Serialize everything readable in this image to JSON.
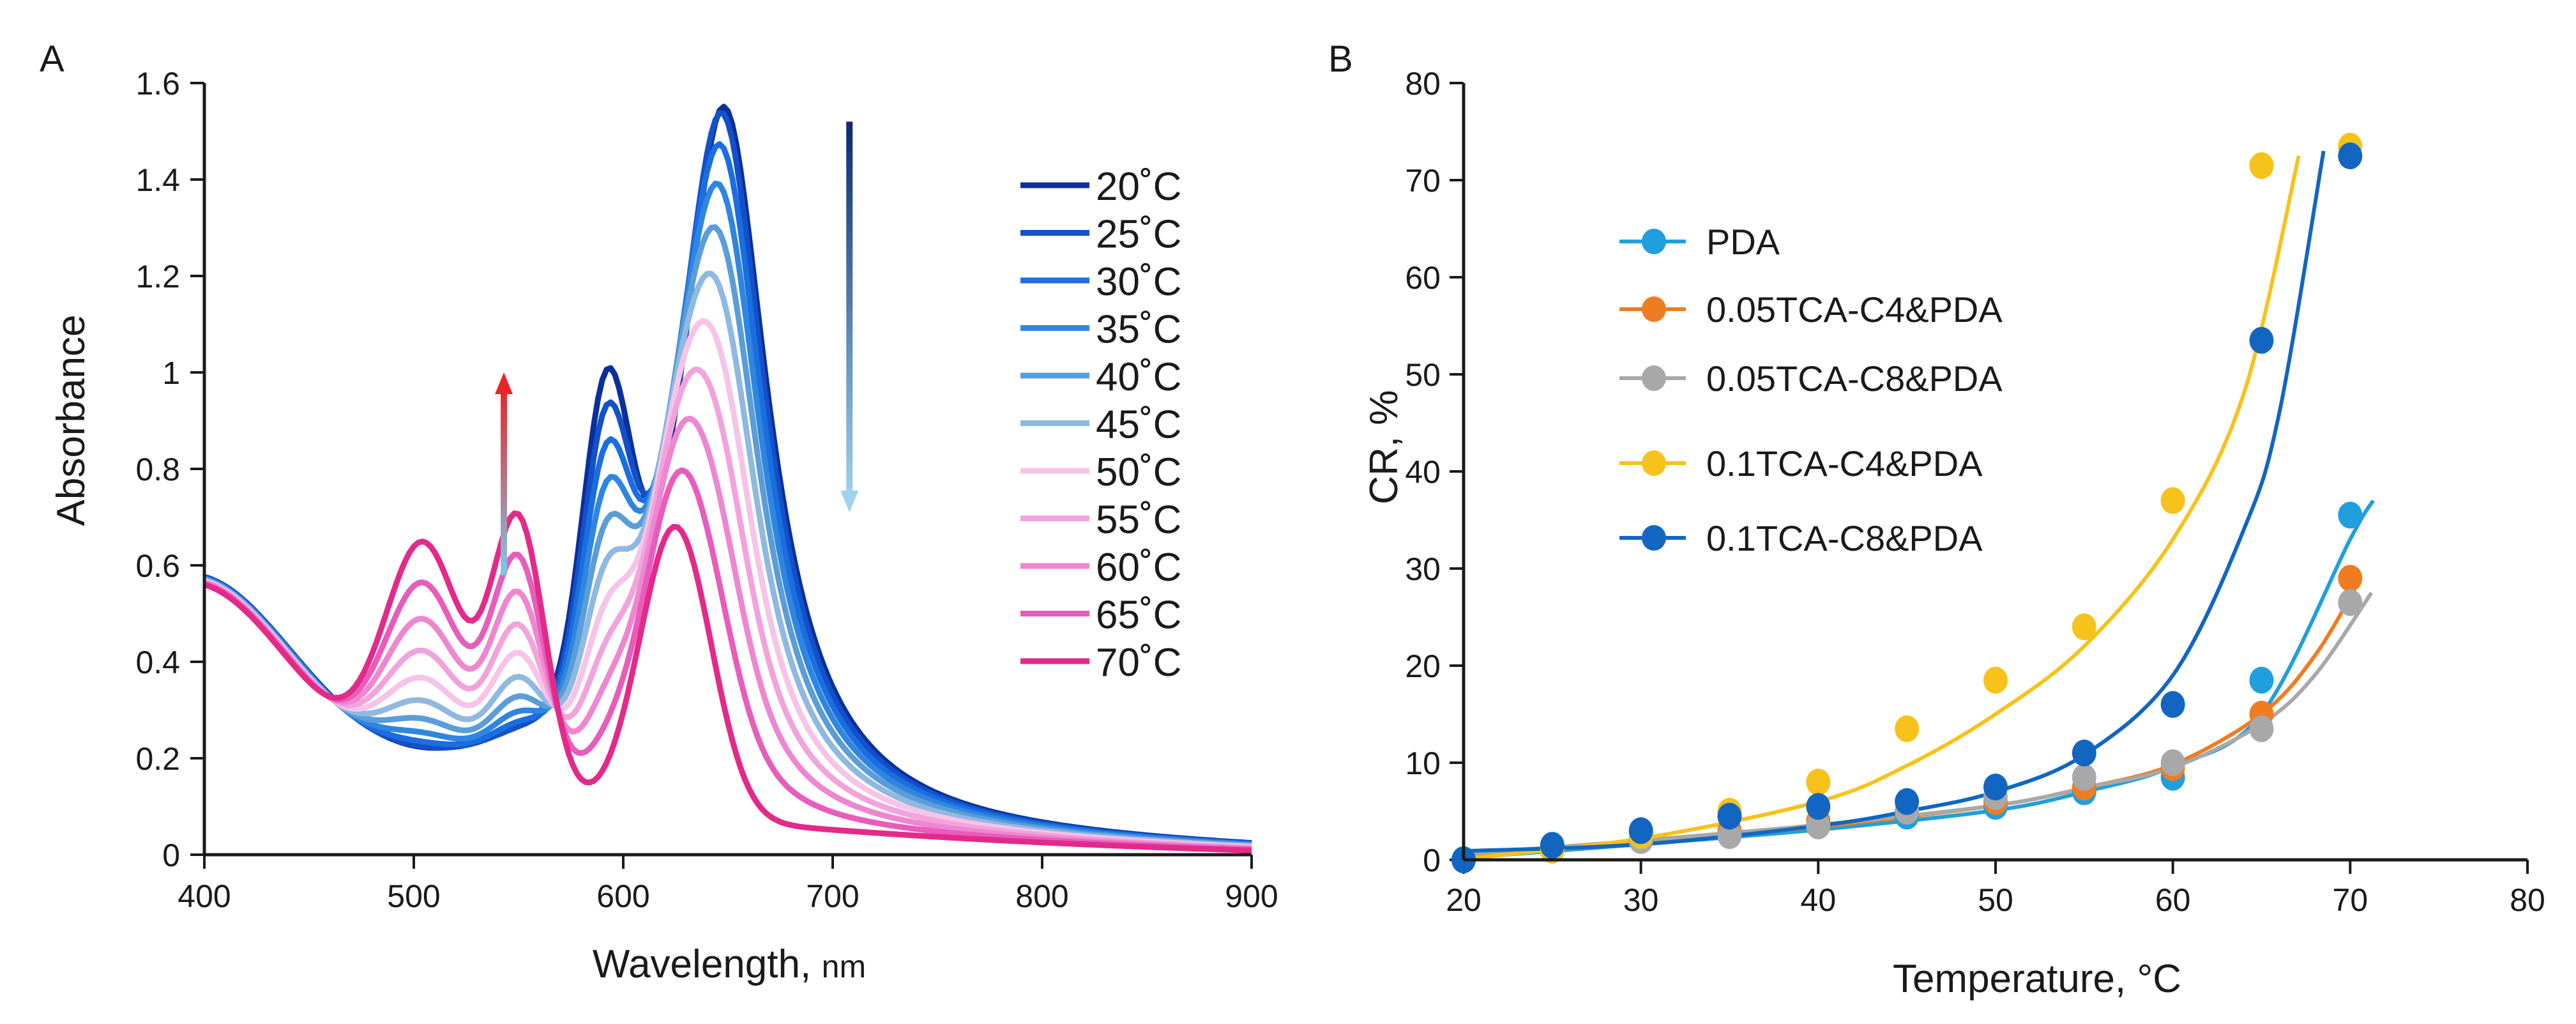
{
  "chart_data": [
    {
      "panel_label": "A",
      "type": "line",
      "xlabel_main": "Wavelength,",
      "xlabel_unit": "nm",
      "ylabel": "Absorbance",
      "xlim": [
        400,
        900
      ],
      "ylim": [
        0,
        1.6
      ],
      "xticks": [
        "400",
        "500",
        "600",
        "700",
        "800",
        "900"
      ],
      "yticks": [
        "0",
        "0.2",
        "0.4",
        "0.6",
        "0.8",
        "1",
        "1.2",
        "1.4",
        "1.6"
      ],
      "grid": false,
      "legend_position": "right",
      "series": [
        {
          "name": "20˚C",
          "color": "#0a2f9e",
          "t": 0.0
        },
        {
          "name": "25˚C",
          "color": "#1450c8",
          "t": 0.1
        },
        {
          "name": "30˚C",
          "color": "#1a6ee0",
          "t": 0.2
        },
        {
          "name": "35˚C",
          "color": "#2f86e0",
          "t": 0.3
        },
        {
          "name": "40˚C",
          "color": "#5a9dd8",
          "t": 0.4
        },
        {
          "name": "45˚C",
          "color": "#8fb9e0",
          "t": 0.5
        },
        {
          "name": "50˚C",
          "color": "#f6c4e8",
          "t": 0.6
        },
        {
          "name": "55˚C",
          "color": "#f2a3dc",
          "t": 0.7
        },
        {
          "name": "60˚C",
          "color": "#ee86d0",
          "t": 0.8
        },
        {
          "name": "65˚C",
          "color": "#e85cbc",
          "t": 0.9
        },
        {
          "name": "70˚C",
          "color": "#e32a8a",
          "t": 1.0
        }
      ],
      "arrows": [
        {
          "direction": "up",
          "x": 543,
          "from": 0.58,
          "to": 1.0,
          "color_top": "#e8262a",
          "color_bottom": "#7fc8e8"
        },
        {
          "direction": "down",
          "x": 708,
          "from": 1.52,
          "to": 0.71,
          "color_top": "#0b2a70",
          "color_bottom": "#9ed2ee"
        }
      ]
    },
    {
      "panel_label": "B",
      "type": "scatter",
      "xlabel": "Temperature, °C",
      "ylabel": "CR, %",
      "xlim": [
        20,
        80
      ],
      "ylim": [
        0,
        80
      ],
      "xticks": [
        "20",
        "30",
        "40",
        "50",
        "60",
        "70",
        "80"
      ],
      "yticks": [
        "0",
        "10",
        "20",
        "30",
        "40",
        "50",
        "60",
        "70",
        "80"
      ],
      "grid": false,
      "legend_position": "upper-left",
      "series": [
        {
          "name": "PDA",
          "color": "#1fa0dc",
          "x": [
            20,
            25,
            30,
            35,
            40,
            45,
            50,
            55,
            60,
            65,
            70
          ],
          "y": [
            0,
            1,
            2,
            2.5,
            3.5,
            4.5,
            5.5,
            7,
            8.5,
            18.5,
            35.5
          ],
          "fit": {
            "a": 2.1,
            "b": 10.4,
            "c": 12.7,
            "xend": 71.3
          }
        },
        {
          "name": "0.05TCA-C4&PDA",
          "color": "#f07c22",
          "x": [
            20,
            25,
            30,
            35,
            40,
            45,
            50,
            55,
            60,
            65,
            70
          ],
          "y": [
            0,
            1,
            2,
            3,
            4,
            5,
            6,
            7.5,
            9.5,
            15,
            29
          ],
          "fit": {
            "a": 2.04,
            "b": 10.5,
            "c": 13.3,
            "xend": 70.6
          }
        },
        {
          "name": "0.05TCA-C8&PDA",
          "color": "#a8a8a8",
          "x": [
            20,
            25,
            30,
            35,
            40,
            45,
            50,
            55,
            60,
            65,
            70
          ],
          "y": [
            0,
            1,
            2,
            2.5,
            3.5,
            5,
            6.5,
            8.5,
            10,
            13.5,
            26.5
          ],
          "fit": {
            "a": 1.75,
            "b": 10.5,
            "c": 13.6,
            "xend": 71.2
          }
        },
        {
          "name": "0.1TCA-C4&PDA",
          "color": "#f7c21a",
          "x": [
            20,
            25,
            30,
            35,
            40,
            45,
            50,
            55,
            60,
            65,
            70
          ],
          "y": [
            0,
            1,
            2.5,
            5,
            8,
            13.5,
            18.5,
            24,
            37,
            71.5,
            73.5
          ],
          "fit": {
            "a": 1.5,
            "b": 5.2,
            "c": 17.9,
            "xend": 67.1
          }
        },
        {
          "name": "0.1TCA-C8&PDA",
          "color": "#1266c2",
          "x": [
            20,
            25,
            30,
            35,
            40,
            45,
            50,
            55,
            60,
            65,
            70
          ],
          "y": [
            0,
            1.5,
            3,
            4.5,
            5.5,
            6,
            7.5,
            11,
            16,
            53.5,
            72.5
          ],
          "fit": {
            "a": 1.38,
            "b": 8.6,
            "c": 2.1,
            "xend": 68.5
          }
        }
      ]
    }
  ]
}
